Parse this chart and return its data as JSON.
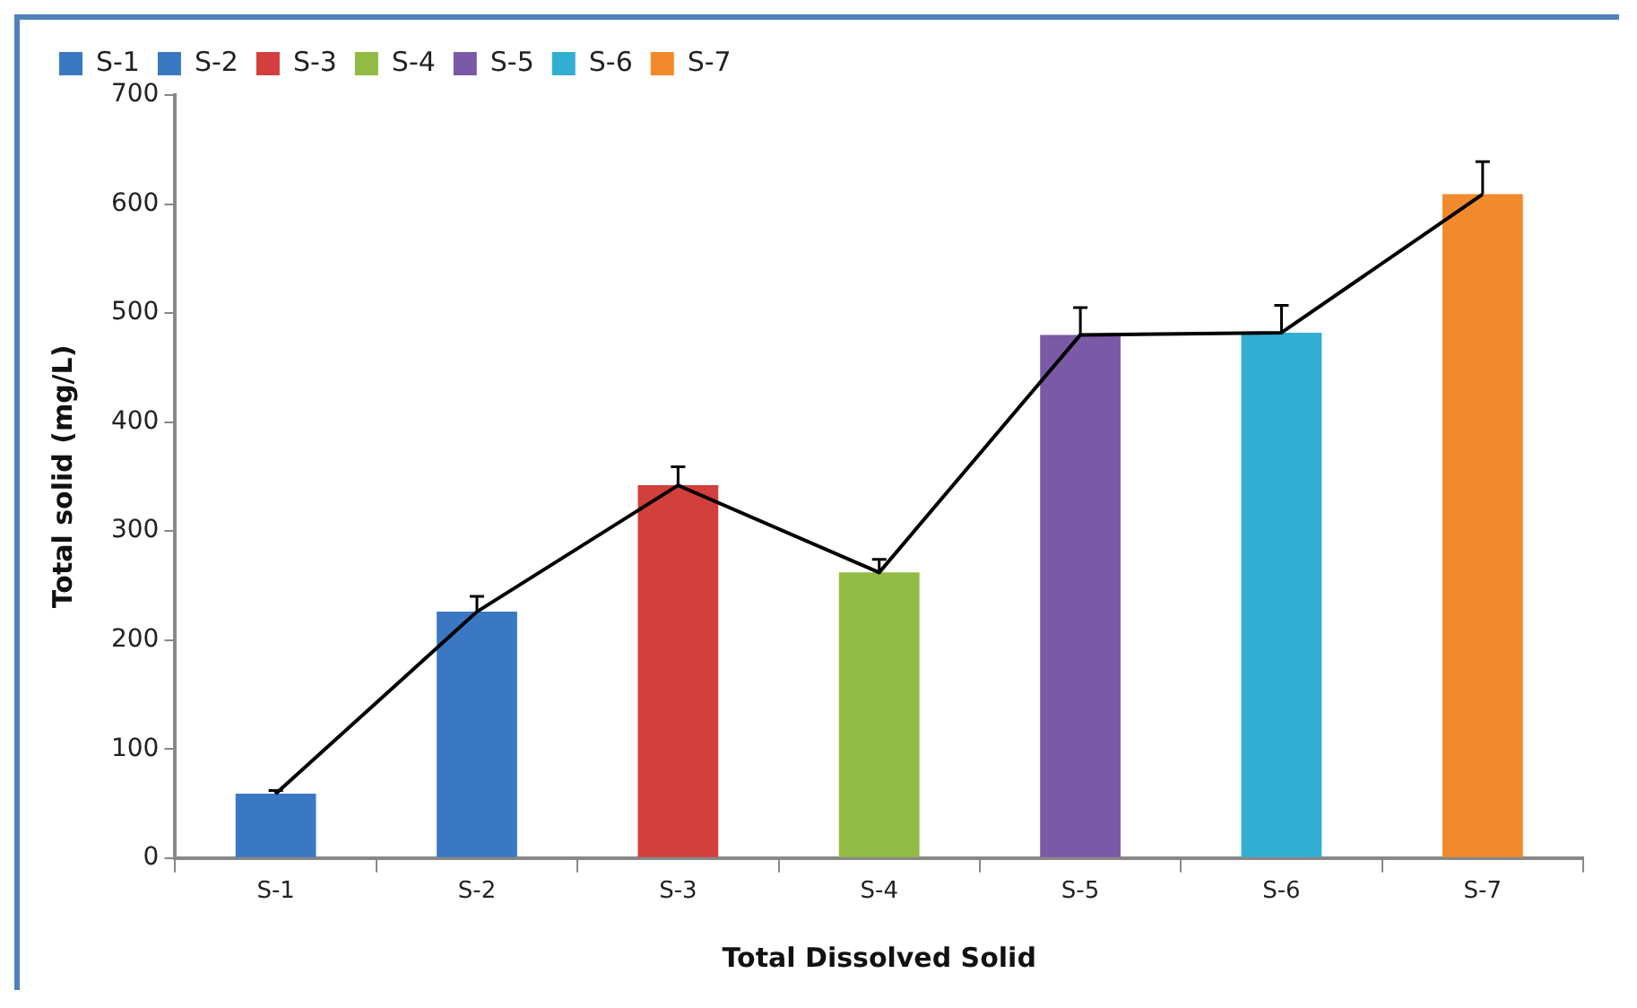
{
  "chart_data": {
    "type": "bar",
    "xlabel": "Total Dissolved Solid",
    "ylabel": "Total solid (mg/L)",
    "categories": [
      "S-1",
      "S-2",
      "S-3",
      "S-4",
      "S-5",
      "S-6",
      "S-7"
    ],
    "series": [
      {
        "name": "S-1",
        "color": "#3a78c4",
        "values": [
          59,
          null,
          null,
          null,
          null,
          null,
          null
        ],
        "errors": [
          [
            59,
            62
          ],
          null,
          null,
          null,
          null,
          null,
          null
        ]
      },
      {
        "name": "S-2",
        "color": "#3a78c4",
        "values": [
          null,
          226,
          null,
          null,
          null,
          null,
          null
        ],
        "errors": [
          null,
          [
            226,
            240
          ],
          null,
          null,
          null,
          null,
          null
        ]
      },
      {
        "name": "S-3",
        "color": "#d23f3c",
        "values": [
          null,
          null,
          342,
          null,
          null,
          null,
          null
        ],
        "errors": [
          null,
          null,
          [
            342,
            359
          ],
          null,
          null,
          null,
          null
        ]
      },
      {
        "name": "S-4",
        "color": "#92bb45",
        "values": [
          null,
          null,
          null,
          262,
          null,
          null,
          null
        ],
        "errors": [
          null,
          null,
          null,
          [
            262,
            274
          ],
          null,
          null,
          null
        ]
      },
      {
        "name": "S-5",
        "color": "#7a59a6",
        "values": [
          null,
          null,
          null,
          null,
          480,
          null,
          null
        ],
        "errors": [
          null,
          null,
          null,
          null,
          [
            480,
            505
          ],
          null,
          null
        ]
      },
      {
        "name": "S-6",
        "color": "#33aed3",
        "values": [
          null,
          null,
          null,
          null,
          null,
          482,
          null
        ],
        "errors": [
          null,
          null,
          null,
          null,
          null,
          [
            482,
            507
          ],
          null
        ]
      },
      {
        "name": "S-7",
        "color": "#f18a2c",
        "values": [
          null,
          null,
          null,
          null,
          null,
          null,
          609
        ],
        "errors": [
          null,
          null,
          null,
          null,
          null,
          null,
          [
            609,
            639
          ]
        ]
      },
      {
        "type": "line",
        "color": "#000000",
        "marker": "none",
        "values": [
          59,
          226,
          342,
          262,
          480,
          482,
          609
        ]
      }
    ],
    "ylim": [
      0,
      700
    ],
    "yticks": [
      0,
      100,
      200,
      300,
      400,
      500,
      600,
      700
    ],
    "grid": false,
    "legend": "top left"
  }
}
